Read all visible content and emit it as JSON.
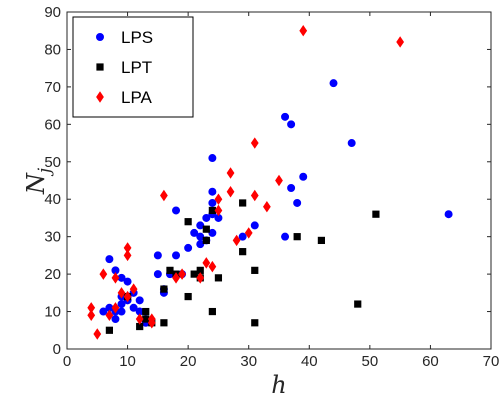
{
  "chart_data": {
    "type": "scatter",
    "xlabel": "h",
    "ylabel_main": "N",
    "ylabel_sub": "j",
    "xlim": [
      0,
      70
    ],
    "ylim": [
      0,
      90
    ],
    "xticks": [
      "0",
      "10",
      "20",
      "30",
      "40",
      "50",
      "60",
      "70"
    ],
    "yticks": [
      "0",
      "10",
      "20",
      "30",
      "40",
      "50",
      "60",
      "70",
      "80",
      "90"
    ],
    "grid": false,
    "legend_position": "top-left",
    "series": [
      {
        "name": "LPS",
        "marker": "circle",
        "color": "#0000ff",
        "points": [
          [
            6,
            10
          ],
          [
            7,
            11
          ],
          [
            7,
            24
          ],
          [
            8,
            8
          ],
          [
            8,
            21
          ],
          [
            8,
            10
          ],
          [
            9,
            14
          ],
          [
            9,
            10
          ],
          [
            9,
            12
          ],
          [
            9,
            19
          ],
          [
            10,
            13
          ],
          [
            10,
            14
          ],
          [
            10,
            18
          ],
          [
            11,
            11
          ],
          [
            11,
            15
          ],
          [
            12,
            13
          ],
          [
            12,
            10
          ],
          [
            13,
            7
          ],
          [
            13,
            8
          ],
          [
            15,
            20
          ],
          [
            15,
            25
          ],
          [
            16,
            15
          ],
          [
            16,
            16
          ],
          [
            17,
            20
          ],
          [
            18,
            25
          ],
          [
            18,
            37
          ],
          [
            19,
            20
          ],
          [
            20,
            27
          ],
          [
            21,
            31
          ],
          [
            22,
            30
          ],
          [
            22,
            28
          ],
          [
            22,
            33
          ],
          [
            23,
            29
          ],
          [
            23,
            35
          ],
          [
            24,
            51
          ],
          [
            24,
            42
          ],
          [
            24,
            31
          ],
          [
            24,
            36
          ],
          [
            24,
            39
          ],
          [
            25,
            35
          ],
          [
            29,
            30
          ],
          [
            31,
            33
          ],
          [
            36,
            62
          ],
          [
            36,
            30
          ],
          [
            37,
            43
          ],
          [
            37,
            60
          ],
          [
            38,
            39
          ],
          [
            39,
            46
          ],
          [
            44,
            71
          ],
          [
            47,
            55
          ],
          [
            63,
            36
          ]
        ]
      },
      {
        "name": "LPT",
        "marker": "square",
        "color": "#000000",
        "points": [
          [
            7,
            5
          ],
          [
            10,
            14
          ],
          [
            12,
            6
          ],
          [
            13,
            10
          ],
          [
            13,
            8
          ],
          [
            14,
            7
          ],
          [
            16,
            7
          ],
          [
            16,
            16
          ],
          [
            17,
            21
          ],
          [
            18,
            20
          ],
          [
            20,
            34
          ],
          [
            20,
            14
          ],
          [
            21,
            20
          ],
          [
            22,
            21
          ],
          [
            22,
            19
          ],
          [
            23,
            29
          ],
          [
            23,
            32
          ],
          [
            24,
            10
          ],
          [
            24,
            37
          ],
          [
            25,
            19
          ],
          [
            29,
            39
          ],
          [
            29,
            26
          ],
          [
            31,
            21
          ],
          [
            31,
            7
          ],
          [
            38,
            30
          ],
          [
            42,
            29
          ],
          [
            48,
            12
          ],
          [
            51,
            36
          ]
        ]
      },
      {
        "name": "LPA",
        "marker": "diamond",
        "color": "#ff0000",
        "points": [
          [
            4,
            9
          ],
          [
            4,
            11
          ],
          [
            5,
            4
          ],
          [
            6,
            20
          ],
          [
            7,
            9
          ],
          [
            8,
            19
          ],
          [
            8,
            11
          ],
          [
            9,
            15
          ],
          [
            10,
            25
          ],
          [
            10,
            27
          ],
          [
            10,
            14
          ],
          [
            11,
            16
          ],
          [
            12,
            8
          ],
          [
            14,
            7
          ],
          [
            14,
            8
          ],
          [
            16,
            41
          ],
          [
            18,
            19
          ],
          [
            19,
            20
          ],
          [
            22,
            19
          ],
          [
            23,
            23
          ],
          [
            24,
            22
          ],
          [
            25,
            40
          ],
          [
            25,
            37
          ],
          [
            27,
            47
          ],
          [
            27,
            42
          ],
          [
            28,
            29
          ],
          [
            30,
            31
          ],
          [
            31,
            55
          ],
          [
            31,
            41
          ],
          [
            33,
            38
          ],
          [
            35,
            45
          ],
          [
            39,
            85
          ],
          [
            55,
            82
          ]
        ]
      }
    ]
  }
}
